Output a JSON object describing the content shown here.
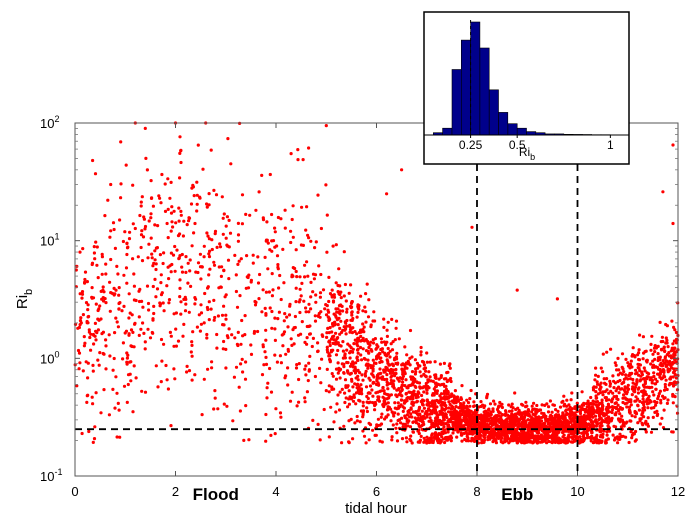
{
  "chart_data": [
    {
      "type": "scatter",
      "title": "",
      "xlabel": "tidal hour",
      "ylabel_main": "Ri",
      "ylabel_sub": "b",
      "xlim": [
        0,
        12
      ],
      "ylim": [
        0.1,
        100
      ],
      "yscale": "log",
      "x_ticks": [
        0,
        2,
        4,
        6,
        8,
        10,
        12
      ],
      "x_tick_labels": [
        "0",
        "2",
        "4",
        "6",
        "8",
        "10",
        "12"
      ],
      "y_ticks": [
        0.1,
        1,
        10,
        100
      ],
      "y_tick_labels": [
        {
          "base": "10",
          "exp": "-1"
        },
        {
          "base": "10",
          "exp": "0"
        },
        {
          "base": "10",
          "exp": "1"
        },
        {
          "base": "10",
          "exp": "2"
        }
      ],
      "marker_color": "#ff0000",
      "grid": false,
      "reference_lines": {
        "horizontal_y": 0.25,
        "vertical_x": [
          8,
          10
        ],
        "style": "dashed",
        "color": "#000000"
      },
      "phase_labels": [
        {
          "text": "Flood",
          "x": 3.0
        },
        {
          "text": "Ebb",
          "x": 9.0
        }
      ],
      "trend_median": [
        {
          "x": 0.0,
          "y": 1.5
        },
        {
          "x": 0.5,
          "y": 2.0
        },
        {
          "x": 1.0,
          "y": 3.0
        },
        {
          "x": 1.5,
          "y": 5.0
        },
        {
          "x": 2.0,
          "y": 7.0
        },
        {
          "x": 2.5,
          "y": 6.0
        },
        {
          "x": 3.0,
          "y": 4.0
        },
        {
          "x": 3.5,
          "y": 3.0
        },
        {
          "x": 4.0,
          "y": 2.5
        },
        {
          "x": 4.5,
          "y": 2.5
        },
        {
          "x": 5.0,
          "y": 2.0
        },
        {
          "x": 5.5,
          "y": 1.0
        },
        {
          "x": 6.0,
          "y": 0.7
        },
        {
          "x": 6.5,
          "y": 0.55
        },
        {
          "x": 7.0,
          "y": 0.4
        },
        {
          "x": 7.5,
          "y": 0.33
        },
        {
          "x": 8.0,
          "y": 0.28
        },
        {
          "x": 8.5,
          "y": 0.26
        },
        {
          "x": 9.0,
          "y": 0.25
        },
        {
          "x": 9.5,
          "y": 0.26
        },
        {
          "x": 10.0,
          "y": 0.27
        },
        {
          "x": 10.5,
          "y": 0.33
        },
        {
          "x": 11.0,
          "y": 0.45
        },
        {
          "x": 11.5,
          "y": 0.65
        },
        {
          "x": 12.0,
          "y": 0.9
        }
      ],
      "outliers": [
        {
          "x": 0.35,
          "y": 48
        },
        {
          "x": 1.2,
          "y": 100
        },
        {
          "x": 1.4,
          "y": 90
        },
        {
          "x": 2.0,
          "y": 100
        },
        {
          "x": 2.6,
          "y": 100
        },
        {
          "x": 3.1,
          "y": 45
        },
        {
          "x": 4.3,
          "y": 55
        },
        {
          "x": 5.0,
          "y": 95
        },
        {
          "x": 6.5,
          "y": 40
        },
        {
          "x": 6.2,
          "y": 25
        },
        {
          "x": 7.9,
          "y": 13
        },
        {
          "x": 8.8,
          "y": 3.8
        },
        {
          "x": 9.6,
          "y": 3.2
        },
        {
          "x": 11.9,
          "y": 65
        },
        {
          "x": 11.7,
          "y": 26
        },
        {
          "x": 11.9,
          "y": 14
        },
        {
          "x": 0.1,
          "y": 8
        },
        {
          "x": 0.15,
          "y": 3.5
        }
      ]
    },
    {
      "type": "bar",
      "title": "",
      "xlabel_main": "Ri",
      "xlabel_sub": "b",
      "xlim": [
        0,
        1.1
      ],
      "x_ticks": [
        0.25,
        0.5,
        1
      ],
      "x_tick_labels": [
        "0.25",
        "0.5",
        "1"
      ],
      "y_ticks_shown": false,
      "bar_color": "#00008b",
      "bar_edge_color": "#000000",
      "reference_line_x": 0.25,
      "bins": [
        {
          "x0": 0.05,
          "x1": 0.1,
          "value": 2
        },
        {
          "x0": 0.1,
          "x1": 0.15,
          "value": 6
        },
        {
          "x0": 0.15,
          "x1": 0.2,
          "value": 58
        },
        {
          "x0": 0.2,
          "x1": 0.25,
          "value": 84
        },
        {
          "x0": 0.25,
          "x1": 0.3,
          "value": 100
        },
        {
          "x0": 0.3,
          "x1": 0.35,
          "value": 77
        },
        {
          "x0": 0.35,
          "x1": 0.4,
          "value": 40
        },
        {
          "x0": 0.4,
          "x1": 0.45,
          "value": 20
        },
        {
          "x0": 0.45,
          "x1": 0.5,
          "value": 10
        },
        {
          "x0": 0.5,
          "x1": 0.55,
          "value": 6
        },
        {
          "x0": 0.55,
          "x1": 0.6,
          "value": 3
        },
        {
          "x0": 0.6,
          "x1": 0.65,
          "value": 2
        },
        {
          "x0": 0.65,
          "x1": 0.7,
          "value": 1
        },
        {
          "x0": 0.7,
          "x1": 0.75,
          "value": 1
        },
        {
          "x0": 0.75,
          "x1": 0.8,
          "value": 0.6
        },
        {
          "x0": 0.8,
          "x1": 0.85,
          "value": 0.5
        },
        {
          "x0": 0.85,
          "x1": 0.9,
          "value": 0.4
        },
        {
          "x0": 0.9,
          "x1": 0.95,
          "value": 0.3
        },
        {
          "x0": 0.95,
          "x1": 1.0,
          "value": 0.3
        },
        {
          "x0": 1.0,
          "x1": 1.05,
          "value": 0.2
        }
      ]
    }
  ]
}
